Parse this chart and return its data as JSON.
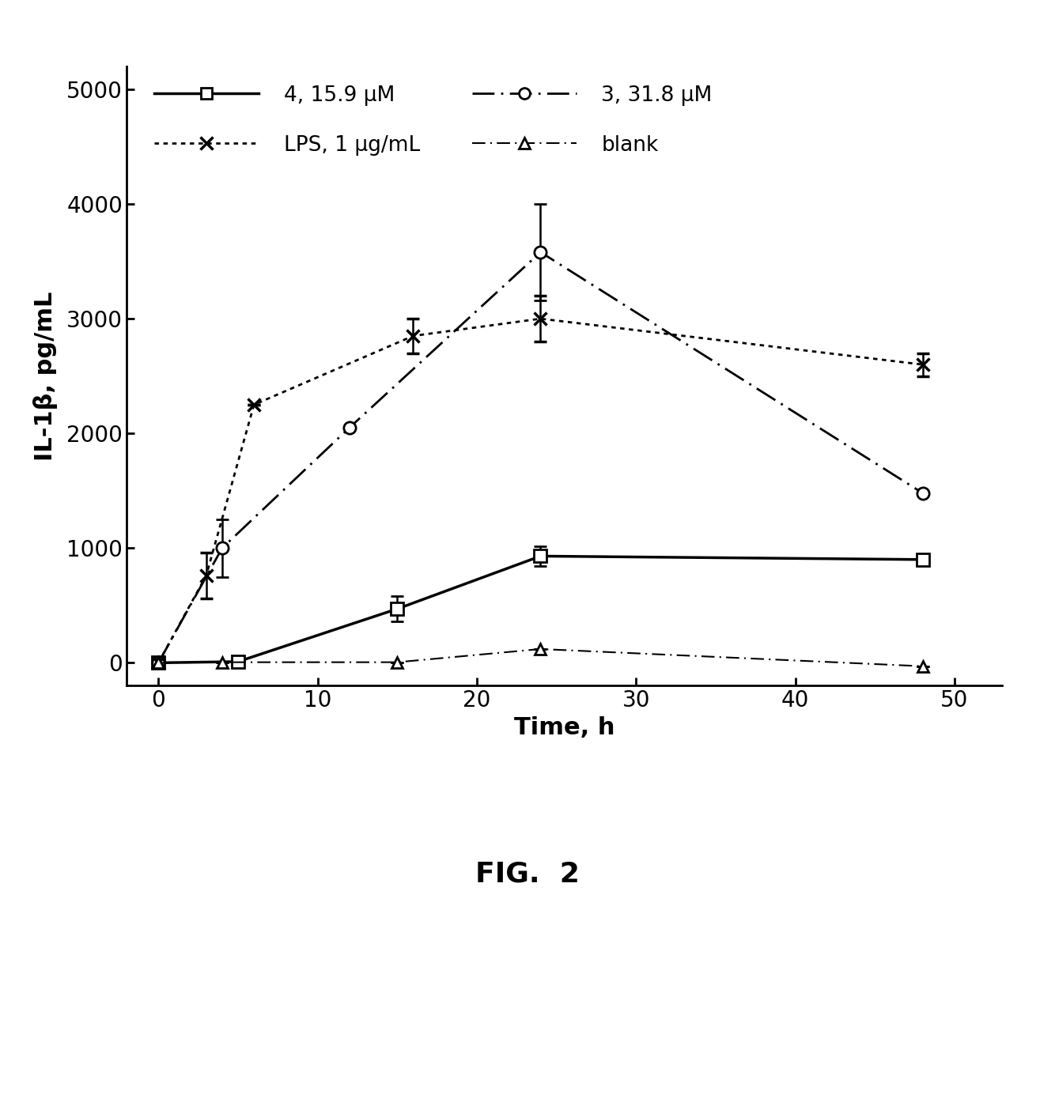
{
  "series": {
    "4_15.9uM": {
      "x": [
        0,
        5,
        15,
        24,
        48
      ],
      "y": [
        0,
        10,
        470,
        930,
        900
      ],
      "yerr": [
        0,
        0,
        110,
        85,
        0
      ],
      "label": "4, 15.9 μM",
      "linestyle": "solid",
      "marker": "s",
      "linewidth": 2.5,
      "markersize": 11
    },
    "3_31.8uM": {
      "x": [
        0,
        4,
        12,
        24,
        48
      ],
      "y": [
        0,
        1000,
        2050,
        3580,
        1480
      ],
      "yerr": [
        0,
        250,
        0,
        420,
        0
      ],
      "label": "3, 31.8 μM",
      "linestyle": "loosely_dashdotted",
      "marker": "o",
      "linewidth": 2,
      "markersize": 11
    },
    "LPS": {
      "x": [
        0,
        3,
        6,
        16,
        24,
        48
      ],
      "y": [
        0,
        760,
        2250,
        2850,
        3000,
        2600
      ],
      "yerr": [
        0,
        200,
        0,
        150,
        200,
        100
      ],
      "label": "LPS, 1 μg/mL",
      "linestyle": "dotted",
      "marker": "x",
      "linewidth": 2,
      "markersize": 12,
      "markeredgewidth": 2.5
    },
    "blank": {
      "x": [
        0,
        4,
        15,
        24,
        48
      ],
      "y": [
        0,
        5,
        5,
        120,
        -30
      ],
      "yerr": [
        0,
        0,
        0,
        0,
        0
      ],
      "label": "blank",
      "linestyle": "loosely_dashdotted2",
      "marker": "^",
      "linewidth": 1.5,
      "markersize": 10
    }
  },
  "xlabel": "Time, h",
  "ylabel": "IL-1β, pg/mL",
  "xlim": [
    -2,
    53
  ],
  "ylim": [
    -200,
    5200
  ],
  "yticks": [
    0,
    1000,
    2000,
    3000,
    4000,
    5000
  ],
  "xticks": [
    0,
    10,
    20,
    30,
    40,
    50
  ],
  "fig_label": "FIG.  2",
  "background_color": "#ffffff",
  "axis_fontsize": 22,
  "tick_fontsize": 20,
  "legend_fontsize": 19
}
